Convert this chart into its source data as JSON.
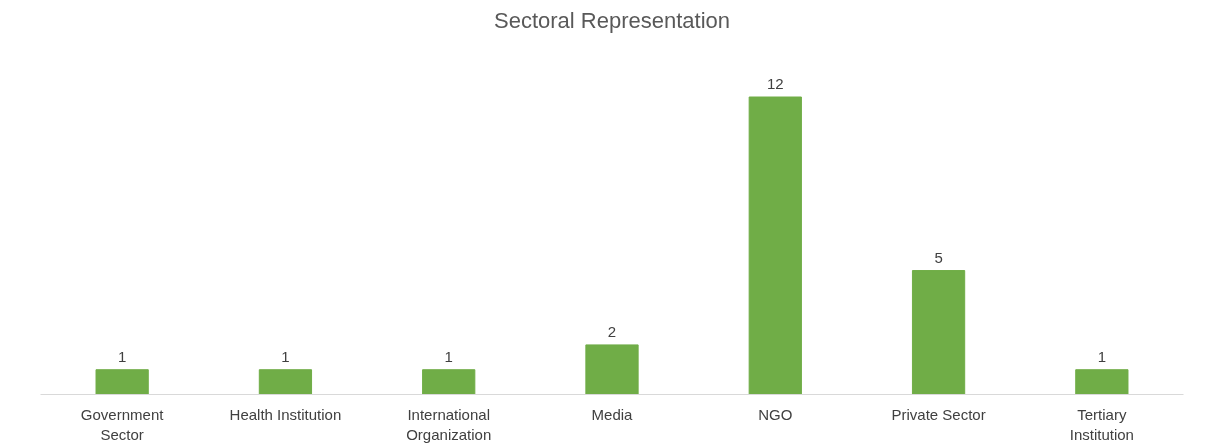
{
  "chart_data": {
    "type": "bar",
    "title": "Sectoral Representation",
    "categories": [
      "Government\nSector",
      "Health Institution",
      "International\nOrganization",
      "Media",
      "NGO",
      "Private Sector",
      "Tertiary\nInstitution"
    ],
    "values": [
      1,
      1,
      1,
      2,
      12,
      5,
      1
    ],
    "color": "#70ad47",
    "data_labels": true
  }
}
